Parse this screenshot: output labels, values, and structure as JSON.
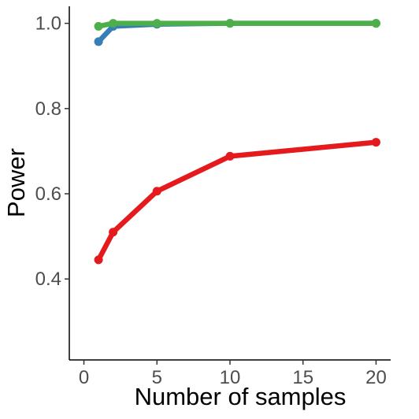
{
  "chart_data": {
    "type": "line",
    "xlabel": "Number of samples",
    "ylabel": "Power",
    "xlim": [
      -1,
      21
    ],
    "ylim": [
      0.21,
      1.04
    ],
    "x_ticks": [
      0,
      5,
      10,
      15,
      20
    ],
    "y_ticks": [
      0.4,
      0.6,
      0.8,
      1.0
    ],
    "x_tick_labels": [
      "0",
      "5",
      "10",
      "15",
      "20"
    ],
    "y_tick_labels": [
      "0.4",
      "0.6",
      "0.8",
      "1.0"
    ],
    "grid": false,
    "legend": "none",
    "series": [
      {
        "color": "#377eb8",
        "x": [
          1,
          2,
          5,
          10,
          20
        ],
        "values": [
          0.957,
          0.993,
          0.998,
          1.0,
          1.0
        ]
      },
      {
        "color": "#e41a1c",
        "x": [
          1,
          2,
          5,
          10,
          20
        ],
        "values": [
          0.445,
          0.51,
          0.606,
          0.688,
          0.721
        ]
      },
      {
        "color": "#4daf4a",
        "x": [
          1,
          2,
          5,
          10,
          20
        ],
        "values": [
          0.993,
          1.0,
          1.0,
          1.0,
          1.0
        ]
      }
    ]
  }
}
